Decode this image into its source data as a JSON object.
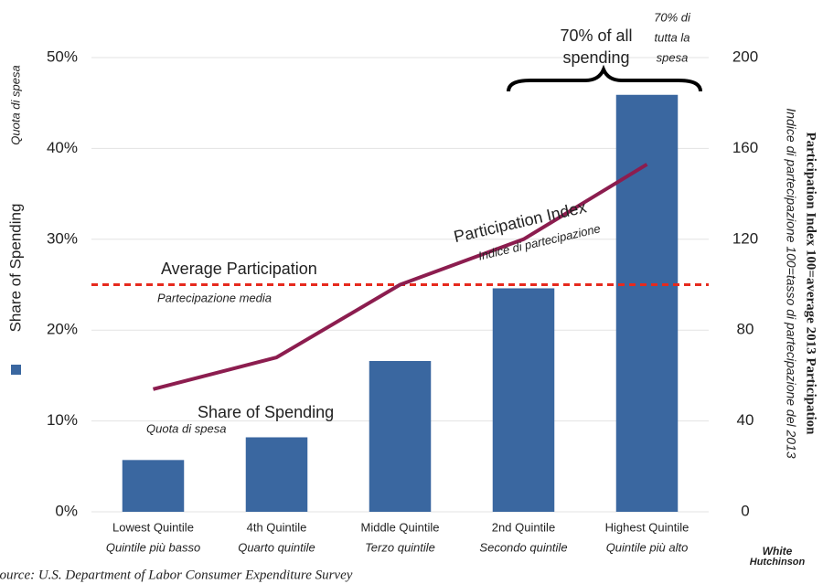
{
  "chart_data": {
    "type": "bar",
    "categories": [
      "Lowest Quintile",
      "4th Quintile",
      "Middle Quintile",
      "2nd Quintile",
      "Highest Quintile"
    ],
    "categories_it": [
      "Quintile più basso",
      "Quarto quintile",
      "Terzo quintile",
      "Secondo quintile",
      "Quintile più alto"
    ],
    "series": [
      {
        "name": "Share of Spending",
        "name_it": "Quota di spesa",
        "type": "bar",
        "color": "#3a67a0",
        "axis": "y",
        "values": [
          5.7,
          8.2,
          16.6,
          24.6,
          45.9
        ]
      },
      {
        "name": "Participation Index",
        "name_it": "Indice di partecipazione",
        "type": "line",
        "color": "#8c1d4f",
        "axis": "y2",
        "values": [
          54,
          68,
          100,
          120,
          153
        ]
      }
    ],
    "reference_line": {
      "value": 100,
      "axis": "y2",
      "color": "#e62a1e",
      "label": "Average Participation",
      "label_it": "Partecipazione media",
      "label_color": "#e8632a"
    },
    "ylim": [
      0,
      50
    ],
    "yticks": [
      {
        "value": 0,
        "label": "0%"
      },
      {
        "value": 10,
        "label": "10%"
      },
      {
        "value": 20,
        "label": "20%"
      },
      {
        "value": 30,
        "label": "30%"
      },
      {
        "value": 40,
        "label": "40%"
      },
      {
        "value": 50,
        "label": "50%"
      }
    ],
    "y2lim": [
      0,
      200
    ],
    "y2ticks": [
      0,
      40,
      80,
      120,
      160,
      200
    ],
    "grid": true,
    "ylabel": "Share of Spending",
    "ylabel_it": "Quota di spesa",
    "y2label": "Participation Index 100=average 2013 Participation",
    "y2label_it": "Indice di partecipazione 100=tasso di partecipazione del 2013",
    "bracket_label": [
      "70% of all",
      "spending"
    ],
    "bracket_label_it": [
      "70% di",
      "tutta la",
      "spesa"
    ],
    "source": "Source: U.S. Department of Labor Consumer Expenditure Survey",
    "logo": [
      "White",
      "Hutchinson"
    ]
  }
}
